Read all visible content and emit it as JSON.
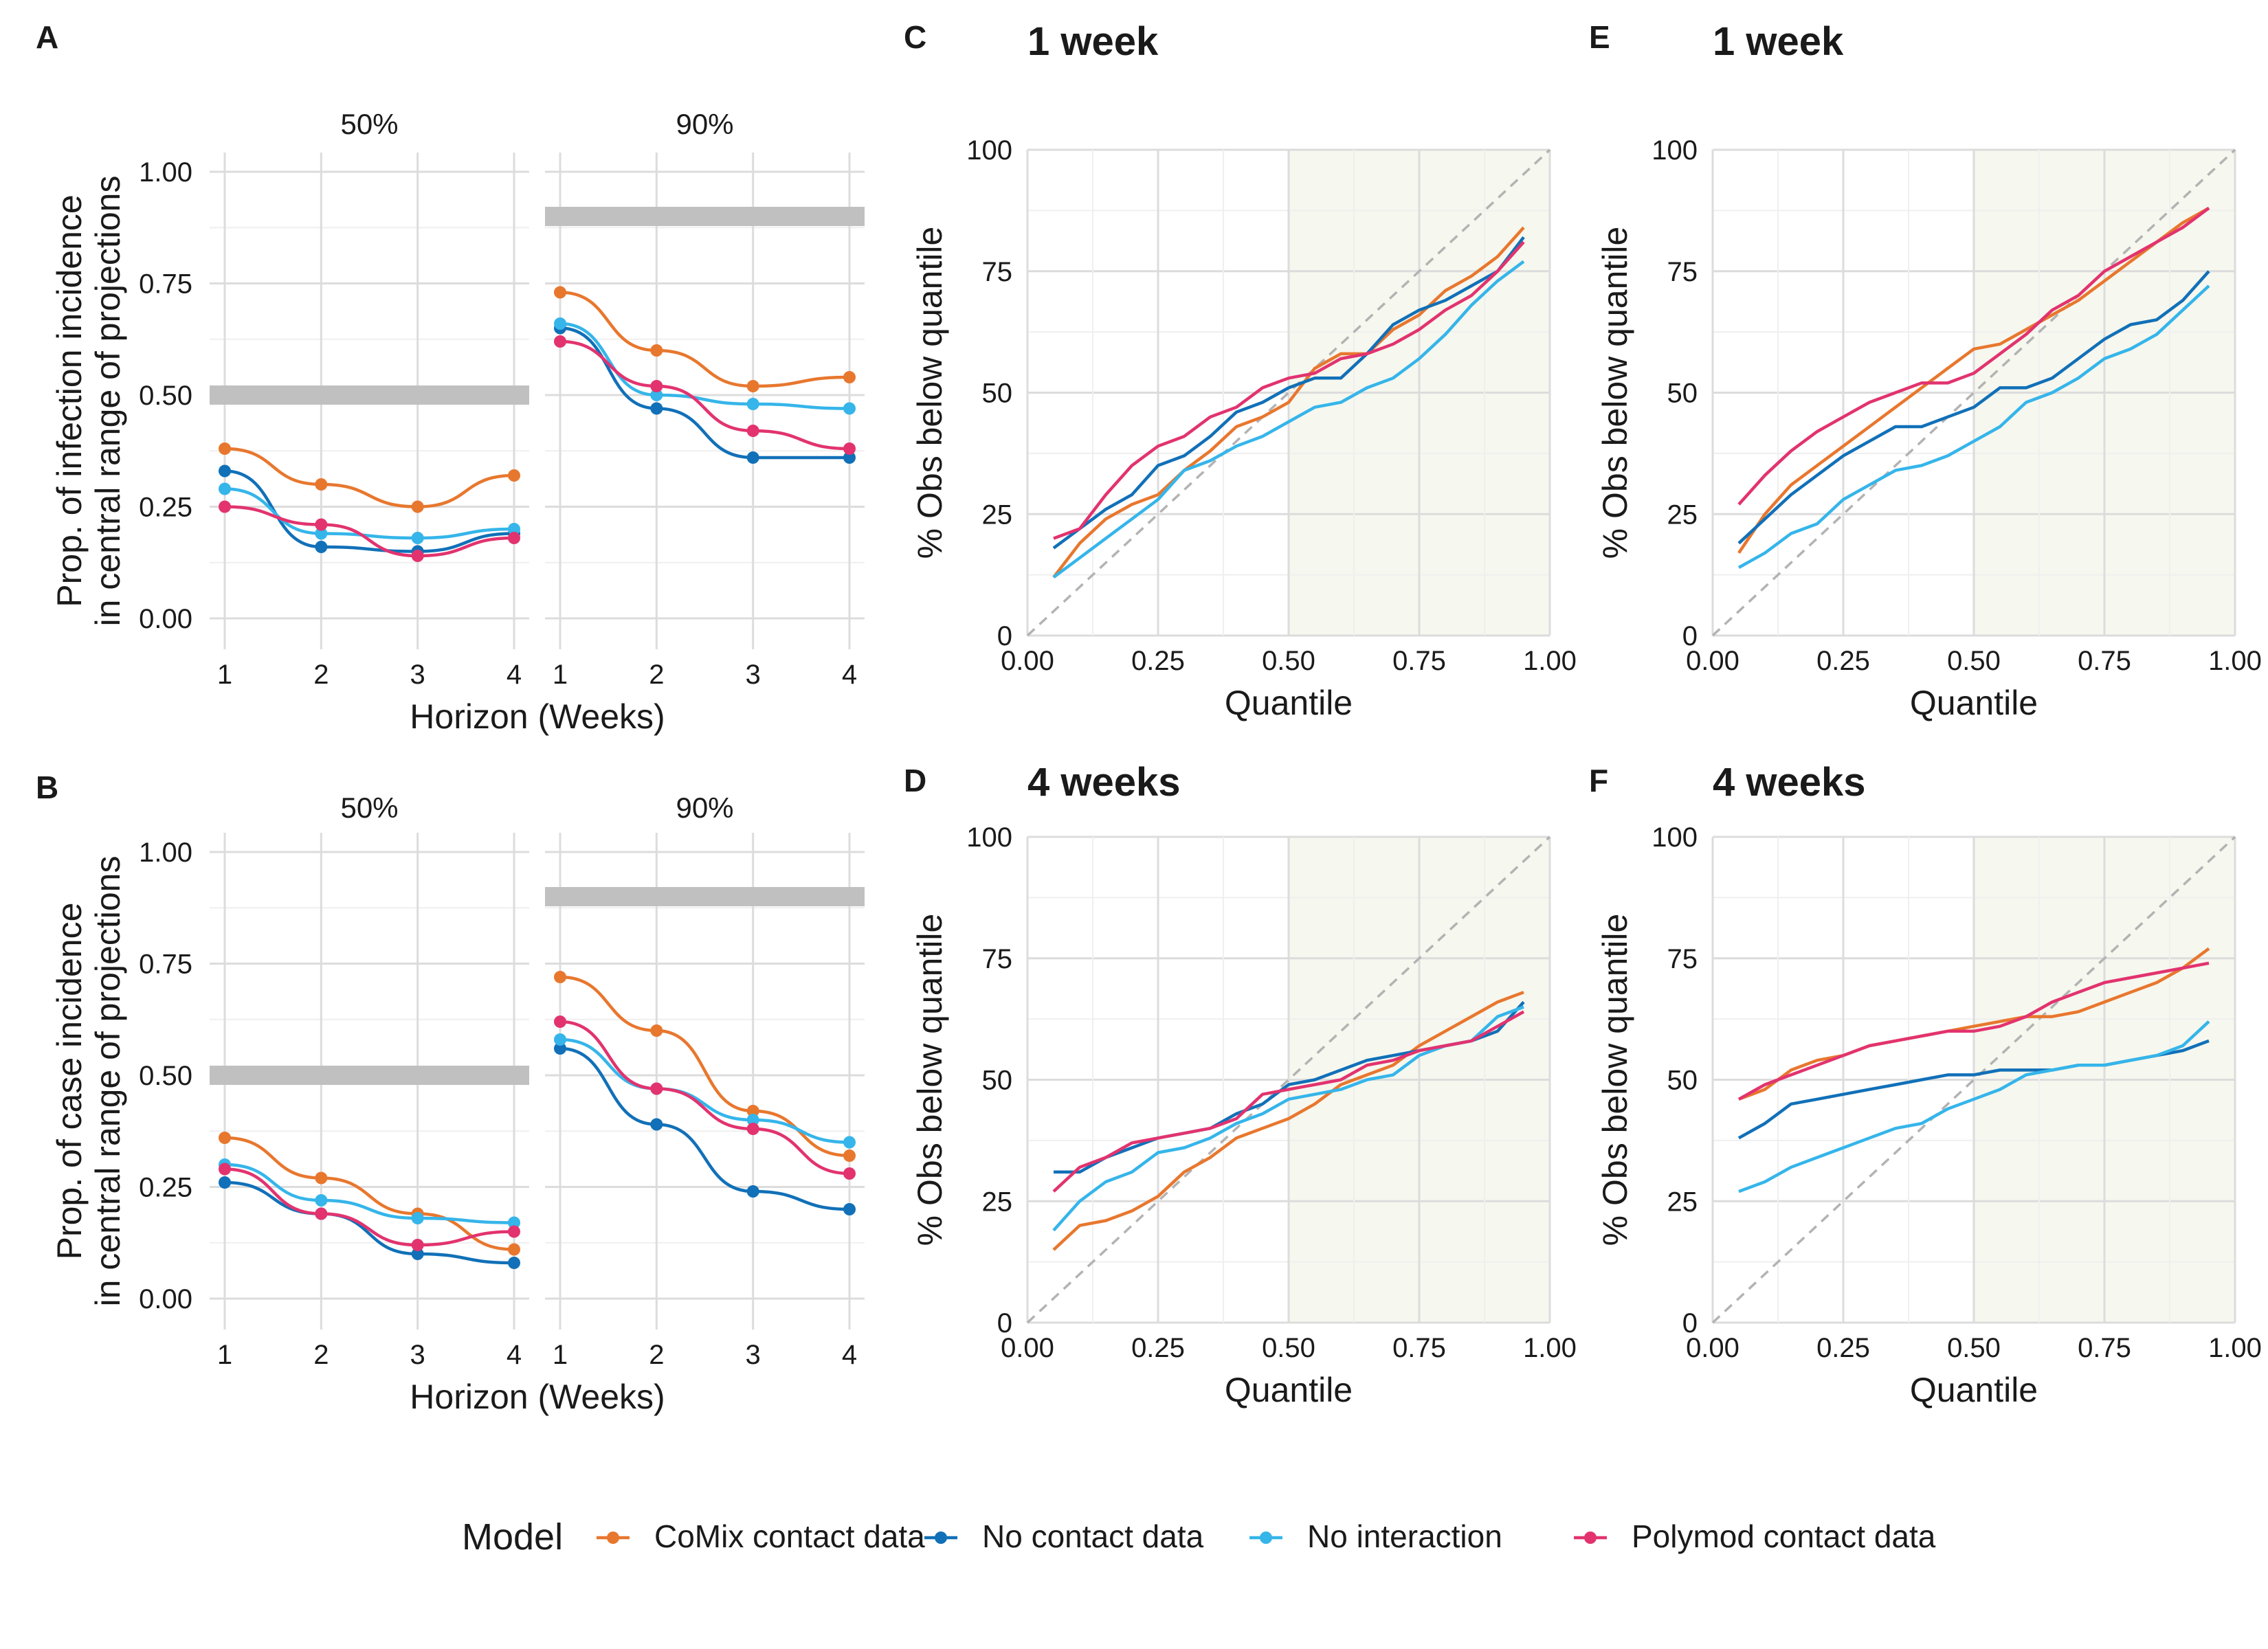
{
  "colors": {
    "CoMix contact data": "#e8772e",
    "No contact data": "#1170b8",
    "No interaction": "#35b5ea",
    "Polymod contact data": "#e2336f",
    "target": "#c0c0c0",
    "shade": "#f6f7ee"
  },
  "legend": {
    "title": "Model",
    "items": [
      "CoMix contact data",
      "No contact data",
      "No interaction",
      "Polymod contact data"
    ]
  },
  "chart_data": [
    {
      "panel": "A",
      "type": "line",
      "ylabel": "Prop. of infection incidence\nin central range of projections",
      "xlabel": "Horizon (Weeks)",
      "x": [
        1,
        2,
        3,
        4
      ],
      "ylim": [
        0,
        1
      ],
      "yticks": [
        "0.00",
        "0.25",
        "0.50",
        "0.75",
        "1.00"
      ],
      "facets": [
        {
          "label": "50%",
          "target": 0.5,
          "series": [
            {
              "name": "CoMix contact data",
              "values": [
                0.38,
                0.3,
                0.25,
                0.32
              ]
            },
            {
              "name": "No contact data",
              "values": [
                0.33,
                0.16,
                0.15,
                0.19
              ]
            },
            {
              "name": "No interaction",
              "values": [
                0.29,
                0.19,
                0.18,
                0.2
              ]
            },
            {
              "name": "Polymod contact data",
              "values": [
                0.25,
                0.21,
                0.14,
                0.18
              ]
            }
          ]
        },
        {
          "label": "90%",
          "target": 0.9,
          "series": [
            {
              "name": "CoMix contact data",
              "values": [
                0.73,
                0.6,
                0.52,
                0.54
              ]
            },
            {
              "name": "No contact data",
              "values": [
                0.65,
                0.47,
                0.36,
                0.36
              ]
            },
            {
              "name": "No interaction",
              "values": [
                0.66,
                0.5,
                0.48,
                0.47
              ]
            },
            {
              "name": "Polymod contact data",
              "values": [
                0.62,
                0.52,
                0.42,
                0.38
              ]
            }
          ]
        }
      ]
    },
    {
      "panel": "B",
      "type": "line",
      "ylabel": "Prop. of case incidence\nin central range of projections",
      "xlabel": "Horizon (Weeks)",
      "x": [
        1,
        2,
        3,
        4
      ],
      "ylim": [
        0,
        1
      ],
      "yticks": [
        "0.00",
        "0.25",
        "0.50",
        "0.75",
        "1.00"
      ],
      "facets": [
        {
          "label": "50%",
          "target": 0.5,
          "series": [
            {
              "name": "CoMix contact data",
              "values": [
                0.36,
                0.27,
                0.19,
                0.11
              ]
            },
            {
              "name": "No contact data",
              "values": [
                0.26,
                0.19,
                0.1,
                0.08
              ]
            },
            {
              "name": "No interaction",
              "values": [
                0.3,
                0.22,
                0.18,
                0.17
              ]
            },
            {
              "name": "Polymod contact data",
              "values": [
                0.29,
                0.19,
                0.12,
                0.15
              ]
            }
          ]
        },
        {
          "label": "90%",
          "target": 0.9,
          "series": [
            {
              "name": "CoMix contact data",
              "values": [
                0.72,
                0.6,
                0.42,
                0.32
              ]
            },
            {
              "name": "No contact data",
              "values": [
                0.56,
                0.39,
                0.24,
                0.2
              ]
            },
            {
              "name": "No interaction",
              "values": [
                0.58,
                0.47,
                0.4,
                0.35
              ]
            },
            {
              "name": "Polymod contact data",
              "values": [
                0.62,
                0.47,
                0.38,
                0.28
              ]
            }
          ]
        }
      ]
    },
    {
      "panel": "C",
      "type": "line",
      "title": "1 week",
      "xlabel": "Quantile",
      "ylabel": "% Obs below quantile",
      "xlim": [
        0,
        1
      ],
      "ylim": [
        0,
        100
      ],
      "xticks": [
        "0.00",
        "0.25",
        "0.50",
        "0.75",
        "1.00"
      ],
      "yticks": [
        "0",
        "25",
        "50",
        "75",
        "100"
      ],
      "x": [
        0.05,
        0.1,
        0.15,
        0.2,
        0.25,
        0.3,
        0.35,
        0.4,
        0.45,
        0.5,
        0.55,
        0.6,
        0.65,
        0.7,
        0.75,
        0.8,
        0.85,
        0.9,
        0.95
      ],
      "series": [
        {
          "name": "CoMix contact data",
          "values": [
            12,
            19,
            24,
            27,
            29,
            34,
            38,
            43,
            45,
            48,
            55,
            58,
            58,
            63,
            66,
            71,
            74,
            78,
            84
          ]
        },
        {
          "name": "No contact data",
          "values": [
            18,
            22,
            26,
            29,
            35,
            37,
            41,
            46,
            48,
            51,
            53,
            53,
            58,
            64,
            67,
            69,
            72,
            75,
            82
          ]
        },
        {
          "name": "No interaction",
          "values": [
            12,
            16,
            20,
            24,
            28,
            34,
            36,
            39,
            41,
            44,
            47,
            48,
            51,
            53,
            57,
            62,
            68,
            73,
            77
          ]
        },
        {
          "name": "Polymod contact data",
          "values": [
            20,
            22,
            29,
            35,
            39,
            41,
            45,
            47,
            51,
            53,
            54,
            57,
            58,
            60,
            63,
            67,
            70,
            75,
            81
          ]
        }
      ]
    },
    {
      "panel": "D",
      "type": "line",
      "title": "4 weeks",
      "xlabel": "Quantile",
      "ylabel": "% Obs below quantile",
      "xlim": [
        0,
        1
      ],
      "ylim": [
        0,
        100
      ],
      "xticks": [
        "0.00",
        "0.25",
        "0.50",
        "0.75",
        "1.00"
      ],
      "yticks": [
        "0",
        "25",
        "50",
        "75",
        "100"
      ],
      "x": [
        0.05,
        0.1,
        0.15,
        0.2,
        0.25,
        0.3,
        0.35,
        0.4,
        0.45,
        0.5,
        0.55,
        0.6,
        0.65,
        0.7,
        0.75,
        0.8,
        0.85,
        0.9,
        0.95
      ],
      "series": [
        {
          "name": "CoMix contact data",
          "values": [
            15,
            20,
            21,
            23,
            26,
            31,
            34,
            38,
            40,
            42,
            45,
            49,
            51,
            53,
            57,
            60,
            63,
            66,
            68
          ]
        },
        {
          "name": "No contact data",
          "values": [
            31,
            31,
            34,
            36,
            38,
            39,
            40,
            43,
            45,
            49,
            50,
            52,
            54,
            55,
            56,
            57,
            58,
            60,
            66
          ]
        },
        {
          "name": "No interaction",
          "values": [
            19,
            25,
            29,
            31,
            35,
            36,
            38,
            41,
            43,
            46,
            47,
            48,
            50,
            51,
            55,
            57,
            58,
            63,
            65
          ]
        },
        {
          "name": "Polymod contact data",
          "values": [
            27,
            32,
            34,
            37,
            38,
            39,
            40,
            42,
            47,
            48,
            49,
            50,
            53,
            54,
            56,
            57,
            58,
            61,
            64
          ]
        }
      ]
    },
    {
      "panel": "E",
      "type": "line",
      "title": "1 week",
      "xlabel": "Quantile",
      "ylabel": "% Obs below quantile",
      "xlim": [
        0,
        1
      ],
      "ylim": [
        0,
        100
      ],
      "xticks": [
        "0.00",
        "0.25",
        "0.50",
        "0.75",
        "1.00"
      ],
      "yticks": [
        "0",
        "25",
        "50",
        "75",
        "100"
      ],
      "x": [
        0.05,
        0.1,
        0.15,
        0.2,
        0.25,
        0.3,
        0.35,
        0.4,
        0.45,
        0.5,
        0.55,
        0.6,
        0.65,
        0.7,
        0.75,
        0.8,
        0.85,
        0.9,
        0.95
      ],
      "series": [
        {
          "name": "CoMix contact data",
          "values": [
            17,
            25,
            31,
            35,
            39,
            43,
            47,
            51,
            55,
            59,
            60,
            63,
            66,
            69,
            73,
            77,
            81,
            85,
            88
          ]
        },
        {
          "name": "No contact data",
          "values": [
            19,
            24,
            29,
            33,
            37,
            40,
            43,
            43,
            45,
            47,
            51,
            51,
            53,
            57,
            61,
            64,
            65,
            69,
            75
          ]
        },
        {
          "name": "No interaction",
          "values": [
            14,
            17,
            21,
            23,
            28,
            31,
            34,
            35,
            37,
            40,
            43,
            48,
            50,
            53,
            57,
            59,
            62,
            67,
            72
          ]
        },
        {
          "name": "Polymod contact data",
          "values": [
            27,
            33,
            38,
            42,
            45,
            48,
            50,
            52,
            52,
            54,
            58,
            62,
            67,
            70,
            75,
            78,
            81,
            84,
            88
          ]
        }
      ]
    },
    {
      "panel": "F",
      "type": "line",
      "title": "4 weeks",
      "xlabel": "Quantile",
      "ylabel": "% Obs below quantile",
      "xlim": [
        0,
        1
      ],
      "ylim": [
        0,
        100
      ],
      "xticks": [
        "0.00",
        "0.25",
        "0.50",
        "0.75",
        "1.00"
      ],
      "yticks": [
        "0",
        "25",
        "50",
        "75",
        "100"
      ],
      "x": [
        0.05,
        0.1,
        0.15,
        0.2,
        0.25,
        0.3,
        0.35,
        0.4,
        0.45,
        0.5,
        0.55,
        0.6,
        0.65,
        0.7,
        0.75,
        0.8,
        0.85,
        0.9,
        0.95
      ],
      "series": [
        {
          "name": "CoMix contact data",
          "values": [
            46,
            48,
            52,
            54,
            55,
            57,
            58,
            59,
            60,
            61,
            62,
            63,
            63,
            64,
            66,
            68,
            70,
            73,
            77
          ]
        },
        {
          "name": "No contact data",
          "values": [
            38,
            41,
            45,
            46,
            47,
            48,
            49,
            50,
            51,
            51,
            52,
            52,
            52,
            53,
            53,
            54,
            55,
            56,
            58
          ]
        },
        {
          "name": "No interaction",
          "values": [
            27,
            29,
            32,
            34,
            36,
            38,
            40,
            41,
            44,
            46,
            48,
            51,
            52,
            53,
            53,
            54,
            55,
            57,
            62
          ]
        },
        {
          "name": "Polymod contact data",
          "values": [
            46,
            49,
            51,
            53,
            55,
            57,
            58,
            59,
            60,
            60,
            61,
            63,
            66,
            68,
            70,
            71,
            72,
            73,
            74
          ]
        }
      ]
    }
  ]
}
